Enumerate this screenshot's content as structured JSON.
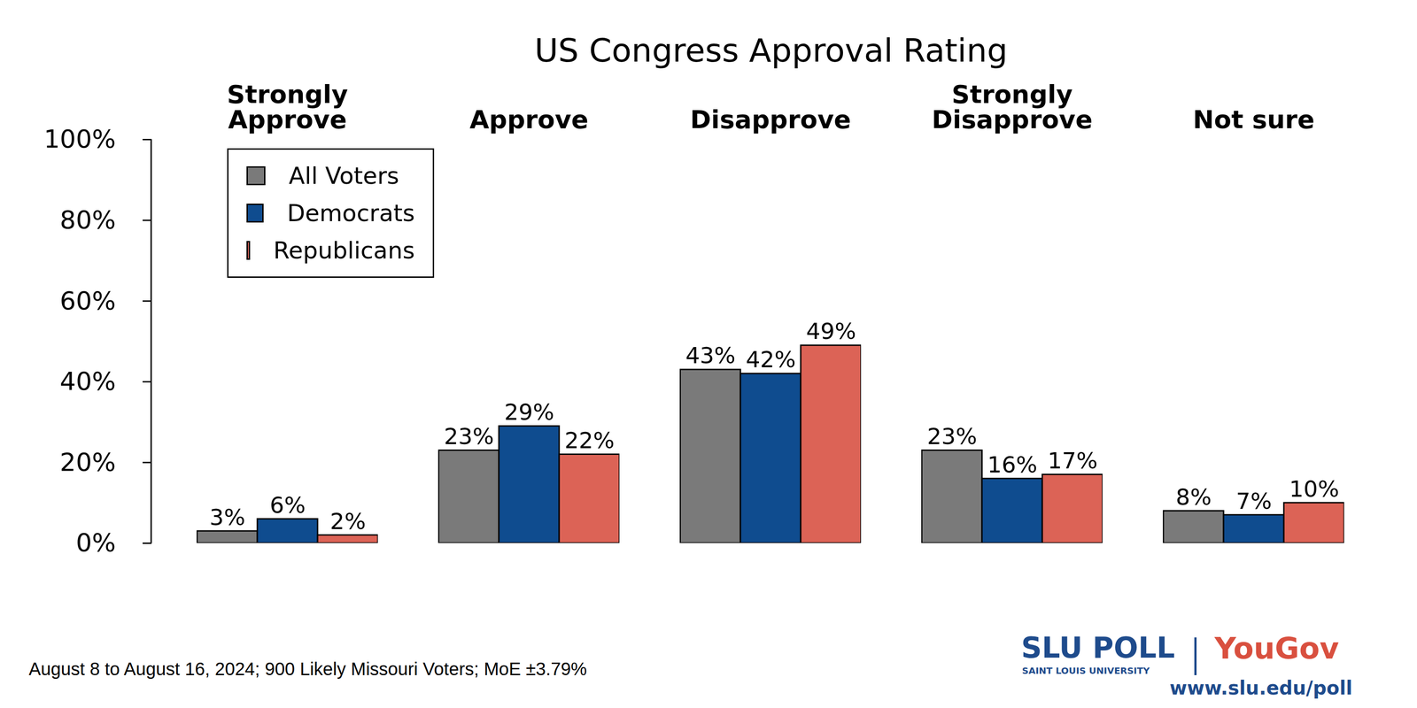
{
  "chart_data": {
    "type": "bar",
    "title": "US Congress Approval Rating",
    "caption": "August 8 to August 16, 2024; 900 Likely Missouri Voters; MoE ±3.79%",
    "annotations": [
      "SLU POLL",
      "SAINT LOUIS UNIVERSITY",
      "YouGov",
      "www.slu.edu/poll"
    ],
    "categories": [
      "Strongly Approve",
      "Approve",
      "Disapprove",
      "Strongly Disapprove",
      "Not sure"
    ],
    "series": [
      {
        "name": "All Voters",
        "color": "#7a7a7a",
        "values": [
          3,
          23,
          43,
          23,
          8
        ],
        "value_labels": [
          "3%",
          "23%",
          "43%",
          "23%",
          "8%"
        ]
      },
      {
        "name": "Democrats",
        "color": "#0f4c8f",
        "values": [
          6,
          29,
          42,
          16,
          7
        ],
        "value_labels": [
          "6%",
          "29%",
          "42%",
          "16%",
          "7%"
        ]
      },
      {
        "name": "Republicans",
        "color": "#dc6356",
        "values": [
          2,
          22,
          49,
          17,
          10
        ],
        "value_labels": [
          "2%",
          "22%",
          "49%",
          "17%",
          "10%"
        ]
      }
    ],
    "ylim": [
      0,
      100
    ],
    "yticks": [
      {
        "value": 0,
        "label": "0%"
      },
      {
        "value": 20,
        "label": "20%"
      },
      {
        "value": 40,
        "label": "40%"
      },
      {
        "value": 60,
        "label": "60%"
      },
      {
        "value": 80,
        "label": "80%"
      },
      {
        "value": 100,
        "label": "100%"
      }
    ],
    "grid": false,
    "legend": "upper left",
    "data_labels": true
  }
}
